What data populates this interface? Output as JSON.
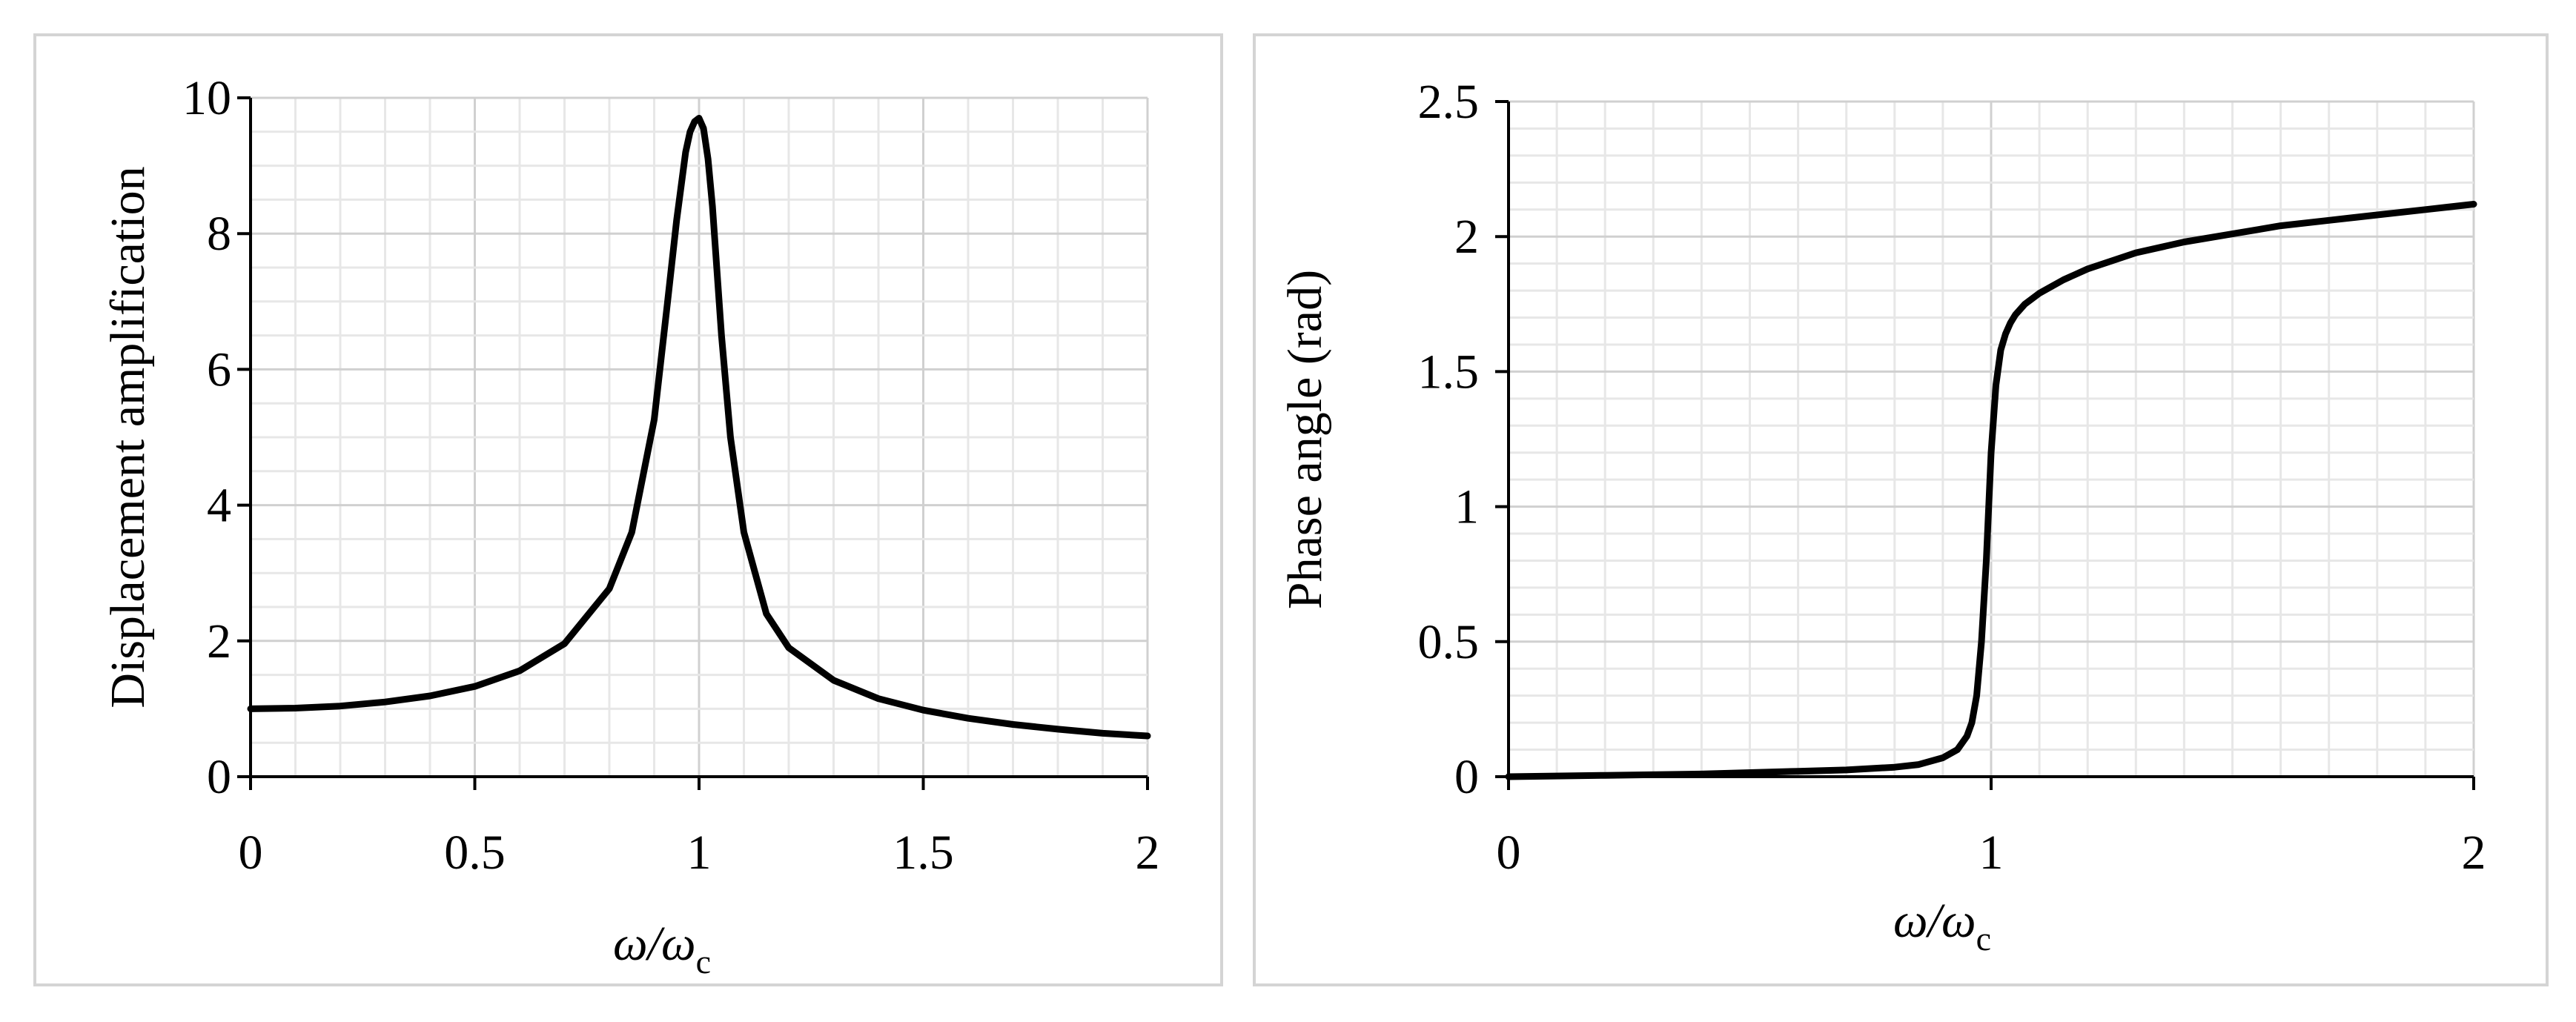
{
  "chart_data": [
    {
      "type": "line",
      "xlabel": "ω/ωc",
      "xlabel_main": "ω/ω",
      "xlabel_sub": "c",
      "ylabel": "Displacement amplification",
      "xlim": [
        0,
        2
      ],
      "ylim": [
        0,
        10
      ],
      "xticks": [
        0,
        0.5,
        1,
        1.5,
        2
      ],
      "xtick_labels": [
        "0",
        "0.5",
        "1",
        "1.5",
        "2"
      ],
      "yticks": [
        0,
        2,
        4,
        6,
        8,
        10
      ],
      "ytick_labels": [
        "0",
        "2",
        "4",
        "6",
        "8",
        "10"
      ],
      "grid": true,
      "series": [
        {
          "x": [
            0,
            0.1,
            0.2,
            0.3,
            0.4,
            0.5,
            0.6,
            0.7,
            0.8,
            0.85,
            0.9,
            0.93,
            0.95,
            0.97,
            0.98,
            0.99,
            1.0,
            1.01,
            1.02,
            1.03,
            1.05,
            1.07,
            1.1,
            1.15,
            1.2,
            1.3,
            1.4,
            1.5,
            1.6,
            1.7,
            1.8,
            1.9,
            2.0
          ],
          "y": [
            1.0,
            1.01,
            1.04,
            1.1,
            1.19,
            1.33,
            1.56,
            1.96,
            2.77,
            3.6,
            5.26,
            7.0,
            8.2,
            9.2,
            9.5,
            9.65,
            9.7,
            9.55,
            9.1,
            8.4,
            6.5,
            5.0,
            3.6,
            2.4,
            1.9,
            1.42,
            1.15,
            0.98,
            0.86,
            0.77,
            0.7,
            0.64,
            0.6
          ]
        }
      ]
    },
    {
      "type": "line",
      "xlabel": "ω/ωc",
      "xlabel_main": "ω/ω",
      "xlabel_sub": "c",
      "ylabel": "Phase angle (rad)",
      "xlim": [
        0,
        2
      ],
      "ylim": [
        0,
        2.5
      ],
      "xticks": [
        0,
        1,
        2
      ],
      "xtick_labels": [
        "0",
        "1",
        "2"
      ],
      "yticks": [
        0,
        0.5,
        1,
        1.5,
        2,
        2.5
      ],
      "ytick_labels": [
        "0",
        "0.5",
        "1",
        "1.5",
        "2",
        "2.5"
      ],
      "grid": true,
      "series": [
        {
          "x": [
            0,
            0.2,
            0.4,
            0.6,
            0.7,
            0.8,
            0.85,
            0.9,
            0.93,
            0.95,
            0.96,
            0.97,
            0.98,
            0.99,
            1.0,
            1.01,
            1.02,
            1.03,
            1.04,
            1.05,
            1.07,
            1.1,
            1.15,
            1.2,
            1.3,
            1.4,
            1.5,
            1.6,
            1.7,
            1.8,
            1.9,
            2.0
          ],
          "y": [
            0.0,
            0.005,
            0.01,
            0.02,
            0.025,
            0.035,
            0.045,
            0.07,
            0.1,
            0.15,
            0.2,
            0.3,
            0.5,
            0.8,
            1.2,
            1.45,
            1.58,
            1.64,
            1.68,
            1.71,
            1.75,
            1.79,
            1.84,
            1.88,
            1.94,
            1.98,
            2.01,
            2.04,
            2.06,
            2.08,
            2.1,
            2.12
          ]
        }
      ]
    }
  ]
}
